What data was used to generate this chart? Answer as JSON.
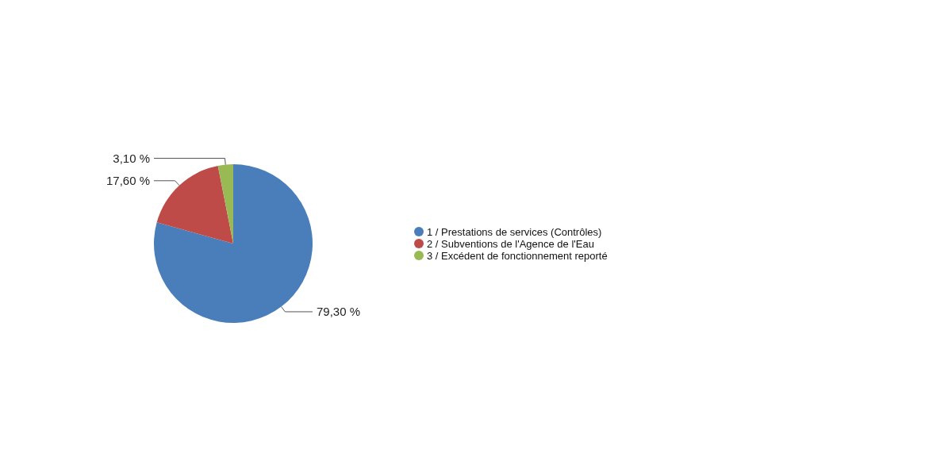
{
  "chart_data": {
    "type": "pie",
    "categories": [
      "1 / Prestations de services (Contrôles)",
      "2 / Subventions de l'Agence de l'Eau",
      "3 / Excédent de fonctionnement reporté"
    ],
    "values": [
      79.3,
      17.6,
      3.1
    ],
    "colors": [
      "#4a7ebb",
      "#be4b48",
      "#98b954"
    ],
    "value_labels": [
      "79,30 %",
      "17,60 %",
      "3,10 %"
    ],
    "legend": "right"
  }
}
